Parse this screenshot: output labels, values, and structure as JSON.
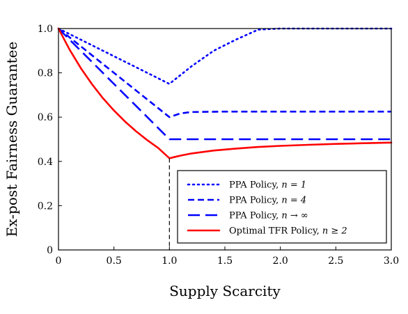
{
  "chart_data": {
    "type": "line",
    "xlabel": "Supply Scarcity",
    "ylabel": "Ex-post Fairness Guarantee",
    "xlim": [
      0,
      3
    ],
    "ylim": [
      0,
      1
    ],
    "x_ticks": [
      "0",
      "0.5",
      "1.0",
      "1.5",
      "2.0",
      "2.5",
      "3.0"
    ],
    "x_tick_values": [
      0,
      0.5,
      1,
      1.5,
      2,
      2.5,
      3
    ],
    "y_ticks": [
      "0",
      "0.2",
      "0.4",
      "0.6",
      "0.8",
      "1.0"
    ],
    "y_tick_values": [
      0,
      0.2,
      0.4,
      0.6,
      0.8,
      1
    ],
    "grid": false,
    "legend_position": "bottom-right",
    "annotation": {
      "type": "vertical-dashed-line",
      "x": 1.0,
      "y_top": 0.414
    },
    "series": [
      {
        "name": "PPA Policy, n = 1",
        "legend_plain": "PPA Policy, ",
        "legend_math": "n = 1",
        "color": "#0000ff",
        "style": "dotted",
        "x": [
          0,
          0.2,
          0.4,
          0.6,
          0.8,
          1.0,
          1.2,
          1.4,
          1.6,
          1.8,
          2.0,
          2.5,
          3.0
        ],
        "y": [
          1.0,
          0.95,
          0.9,
          0.85,
          0.8,
          0.75,
          0.83,
          0.9,
          0.95,
          0.995,
          1.0,
          1.0,
          1.0
        ]
      },
      {
        "name": "PPA Policy, n = 4",
        "legend_plain": "PPA Policy, ",
        "legend_math": "n = 4",
        "color": "#0000ff",
        "style": "dashed",
        "x": [
          0,
          0.2,
          0.4,
          0.6,
          0.8,
          1.0,
          1.1,
          1.2,
          1.5,
          2.0,
          2.5,
          3.0
        ],
        "y": [
          1.0,
          0.92,
          0.84,
          0.76,
          0.68,
          0.6,
          0.617,
          0.623,
          0.625,
          0.625,
          0.625,
          0.625
        ]
      },
      {
        "name": "PPA Policy, n → ∞",
        "legend_plain": "PPA Policy, ",
        "legend_math": "n → ∞",
        "color": "#0000ff",
        "style": "longdash",
        "x": [
          0,
          0.2,
          0.4,
          0.6,
          0.8,
          1.0,
          1.5,
          2.0,
          2.5,
          3.0
        ],
        "y": [
          1.0,
          0.9,
          0.8,
          0.7,
          0.6,
          0.5,
          0.5,
          0.5,
          0.5,
          0.5
        ]
      },
      {
        "name": "Optimal TFR Policy, n ≥ 2",
        "legend_plain": "Optimal TFR Policy, ",
        "legend_math": "n ≥ 2",
        "color": "#ff0000",
        "style": "solid",
        "x": [
          0,
          0.1,
          0.2,
          0.3,
          0.4,
          0.5,
          0.6,
          0.7,
          0.8,
          0.9,
          1.0,
          1.1,
          1.2,
          1.4,
          1.6,
          1.8,
          2.0,
          2.25,
          2.5,
          2.75,
          3.0
        ],
        "y": [
          1.0,
          0.905,
          0.822,
          0.75,
          0.686,
          0.63,
          0.58,
          0.536,
          0.496,
          0.46,
          0.414,
          0.426,
          0.436,
          0.449,
          0.458,
          0.465,
          0.47,
          0.475,
          0.479,
          0.482,
          0.485
        ]
      }
    ]
  }
}
